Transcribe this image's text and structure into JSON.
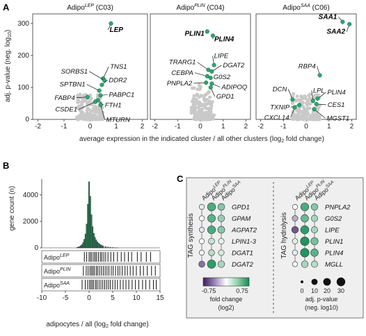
{
  "panels": {
    "A": "A",
    "B": "B",
    "C": "C"
  },
  "chart_data": [
    {
      "type": "scatter",
      "panel": "A",
      "ylabel": "adj. p-value (neg. log10)",
      "xlabel": "average expression in the indicated cluster / all other clusters (log2 fold change)",
      "xlim": [
        -2.2,
        2.2
      ],
      "ylim": [
        0,
        330
      ],
      "xticks": [
        "-2",
        "-1",
        "0",
        "1",
        "2"
      ],
      "yticks": [
        "0",
        "100",
        "200",
        "300"
      ],
      "subplots": [
        {
          "title_base": "Adipo",
          "title_sup": "LEP",
          "title_cluster": "(C03)",
          "highlighted": [
            {
              "label": "LEP",
              "x": 0.8,
              "y": 300,
              "bold": true
            },
            {
              "label": "TNS1",
              "x": 0.5,
              "y": 128,
              "bold": false
            },
            {
              "label": "SORBS1",
              "x": 0.55,
              "y": 122,
              "bold": false
            },
            {
              "label": "DDR2",
              "x": 0.45,
              "y": 108,
              "bold": false
            },
            {
              "label": "SPTBN1",
              "x": 0.35,
              "y": 90,
              "bold": false
            },
            {
              "label": "PABPC1",
              "x": 0.4,
              "y": 75,
              "bold": false
            },
            {
              "label": "FABP4",
              "x": -0.1,
              "y": 70,
              "bold": false
            },
            {
              "label": "FTH1",
              "x": 0.3,
              "y": 60,
              "bold": false
            },
            {
              "label": "CSDE1",
              "x": 0.2,
              "y": 55,
              "bold": false
            },
            {
              "label": "MTURN",
              "x": 0.4,
              "y": 45,
              "bold": false
            }
          ]
        },
        {
          "title_base": "Adipo",
          "title_sup": "PLIN",
          "title_cluster": "(C04)",
          "highlighted": [
            {
              "label": "PLIN1",
              "x": 0.3,
              "y": 275,
              "bold": true
            },
            {
              "label": "PLIN4",
              "x": 0.55,
              "y": 262,
              "bold": true
            },
            {
              "label": "LIPE",
              "x": 0.6,
              "y": 170,
              "bold": false
            },
            {
              "label": "TRARG1",
              "x": 0.35,
              "y": 155,
              "bold": false
            },
            {
              "label": "DGAT2",
              "x": 0.5,
              "y": 150,
              "bold": false
            },
            {
              "label": "CEBPA",
              "x": 0.3,
              "y": 135,
              "bold": false
            },
            {
              "label": "G0S2",
              "x": 0.45,
              "y": 130,
              "bold": false
            },
            {
              "label": "PNPLA2",
              "x": 0.25,
              "y": 115,
              "bold": false
            },
            {
              "label": "ADIPOQ",
              "x": 0.5,
              "y": 112,
              "bold": false
            },
            {
              "label": "GPD1",
              "x": 0.45,
              "y": 100,
              "bold": false
            }
          ]
        },
        {
          "title_base": "Adipo",
          "title_sup": "SAA",
          "title_cluster": "(C06)",
          "highlighted": [
            {
              "label": "SAA1",
              "x": 1.6,
              "y": 305,
              "bold": true
            },
            {
              "label": "SAA2",
              "x": 1.9,
              "y": 298,
              "bold": true
            },
            {
              "label": "RBP4",
              "x": 0.6,
              "y": 138,
              "bold": false
            },
            {
              "label": "PLIN4",
              "x": 0.5,
              "y": 65,
              "bold": false
            },
            {
              "label": "DCN",
              "x": -0.6,
              "y": 62,
              "bold": false
            },
            {
              "label": "LPL",
              "x": 0.3,
              "y": 58,
              "bold": false
            },
            {
              "label": "CES1",
              "x": 0.45,
              "y": 48,
              "bold": false
            },
            {
              "label": "TXNIP",
              "x": -0.3,
              "y": 45,
              "bold": false
            },
            {
              "label": "CXCL14",
              "x": -0.5,
              "y": 38,
              "bold": false
            },
            {
              "label": "MGST1",
              "x": 0.35,
              "y": 32,
              "bold": false
            }
          ]
        }
      ]
    },
    {
      "type": "bar",
      "panel": "B",
      "ylabel": "gene count (n)",
      "xlabel": "adipocytes / all (log2 fold change)",
      "xlim": [
        -10,
        15
      ],
      "ylim": [
        0,
        5200
      ],
      "xticks": [
        "-10",
        "-5",
        "0",
        "5",
        "10",
        "15"
      ],
      "yticks": [
        "0",
        "2000",
        "4000"
      ],
      "histogram": {
        "bin_centers": [
          -2.5,
          -2.25,
          -2.0,
          -1.75,
          -1.5,
          -1.25,
          -1.0,
          -0.75,
          -0.5,
          -0.25,
          0.0,
          0.25,
          0.5,
          0.75,
          1.0,
          1.25,
          1.5,
          1.75,
          2.0,
          2.25,
          2.5,
          2.75,
          3.0,
          3.5,
          4.0,
          4.5,
          5.0,
          5.5,
          6.0
        ],
        "counts": [
          30,
          60,
          100,
          160,
          250,
          400,
          650,
          1050,
          1800,
          3300,
          5000,
          3900,
          2500,
          1600,
          1100,
          800,
          600,
          450,
          350,
          280,
          220,
          170,
          130,
          90,
          60,
          40,
          25,
          15,
          8
        ]
      },
      "rugs": [
        {
          "label_base": "Adipo",
          "label_sup": "LEP",
          "values": [
            -6.5,
            -4.5,
            -3.2,
            -1.8,
            -1.0,
            -0.5,
            0.0,
            0.3,
            0.6,
            1.0,
            1.3,
            1.6,
            2.0,
            2.4,
            2.7,
            3.1,
            3.5,
            4.0,
            4.6,
            5.2,
            6.0,
            6.8,
            7.5,
            8.3,
            9.0,
            10.2,
            11.0,
            12.1,
            13.0
          ]
        },
        {
          "label_base": "Adipo",
          "label_sup": "PLIN",
          "values": [
            -1.2,
            -0.6,
            -0.2,
            0.2,
            0.5,
            0.8,
            1.1,
            1.5,
            1.8,
            2.2,
            2.6,
            3.0,
            3.4,
            3.8,
            4.2,
            4.7,
            5.1,
            5.6,
            6.1,
            6.5,
            7.0,
            7.6,
            8.1,
            8.7,
            9.3,
            10.0,
            10.8,
            11.5,
            12.3,
            13.2,
            14.0
          ]
        },
        {
          "label_base": "Adipo",
          "label_sup": "SAA",
          "values": [
            -1.5,
            -0.8,
            -0.3,
            0.1,
            0.4,
            0.7,
            1.0,
            1.4,
            1.7,
            2.1,
            2.5,
            2.9,
            3.3,
            3.7,
            4.1,
            4.5,
            5.0,
            5.5,
            6.0,
            6.6,
            7.2,
            7.8,
            8.4,
            9.1,
            9.8,
            10.5,
            11.3,
            12.0,
            12.8,
            13.6,
            14.2
          ]
        }
      ]
    },
    {
      "type": "heatmap",
      "panel": "C",
      "columns": [
        {
          "base": "Adipo",
          "sup": "LEP"
        },
        {
          "base": "Adipo",
          "sup": "PLIN"
        },
        {
          "base": "Adipo",
          "sup": "SAA"
        }
      ],
      "groups": [
        {
          "name": "TAG synthesis",
          "genes": [
            "GPD1",
            "GPAM",
            "AGPAT2",
            "LPIN1-3",
            "DGAT1",
            "DGAT2"
          ],
          "fold_change": [
            [
              0.1,
              0.6,
              0.4
            ],
            [
              0.0,
              0.55,
              0.35
            ],
            [
              -0.1,
              0.6,
              0.4
            ],
            [
              0.0,
              0.2,
              0.1
            ],
            [
              0.05,
              0.25,
              0.15
            ],
            [
              -0.5,
              0.7,
              0.3
            ]
          ],
          "neg_log10_p": [
            [
              5,
              25,
              15
            ],
            [
              5,
              22,
              14
            ],
            [
              5,
              24,
              16
            ],
            [
              5,
              10,
              8
            ],
            [
              5,
              10,
              8
            ],
            [
              10,
              28,
              14
            ]
          ]
        },
        {
          "name": "TAG hydrolysis",
          "genes": [
            "PNPLA2",
            "G0S2",
            "LIPE",
            "PLIN1",
            "PLIN4",
            "MGLL"
          ],
          "fold_change": [
            [
              0.0,
              0.6,
              0.4
            ],
            [
              -0.3,
              0.5,
              0.3
            ],
            [
              -0.6,
              0.7,
              0.3
            ],
            [
              0.1,
              0.75,
              0.45
            ],
            [
              0.1,
              0.75,
              0.55
            ],
            [
              0.05,
              0.3,
              0.25
            ]
          ],
          "neg_log10_p": [
            [
              5,
              24,
              14
            ],
            [
              8,
              20,
              12
            ],
            [
              14,
              26,
              12
            ],
            [
              6,
              30,
              18
            ],
            [
              6,
              30,
              20
            ],
            [
              5,
              14,
              12
            ]
          ]
        }
      ],
      "colorbar": {
        "min": -0.75,
        "max": 0.75,
        "min_label": "-0.75",
        "max_label": "0.75",
        "label_line1": "fold change",
        "label_line2": "(log2)"
      },
      "size_legend": {
        "values": [
          0,
          10,
          20,
          30
        ],
        "labels": [
          "0",
          "10",
          "20",
          "30"
        ],
        "label_line1": "adj. p-value",
        "label_line2": "(neg. log10)"
      }
    }
  ]
}
